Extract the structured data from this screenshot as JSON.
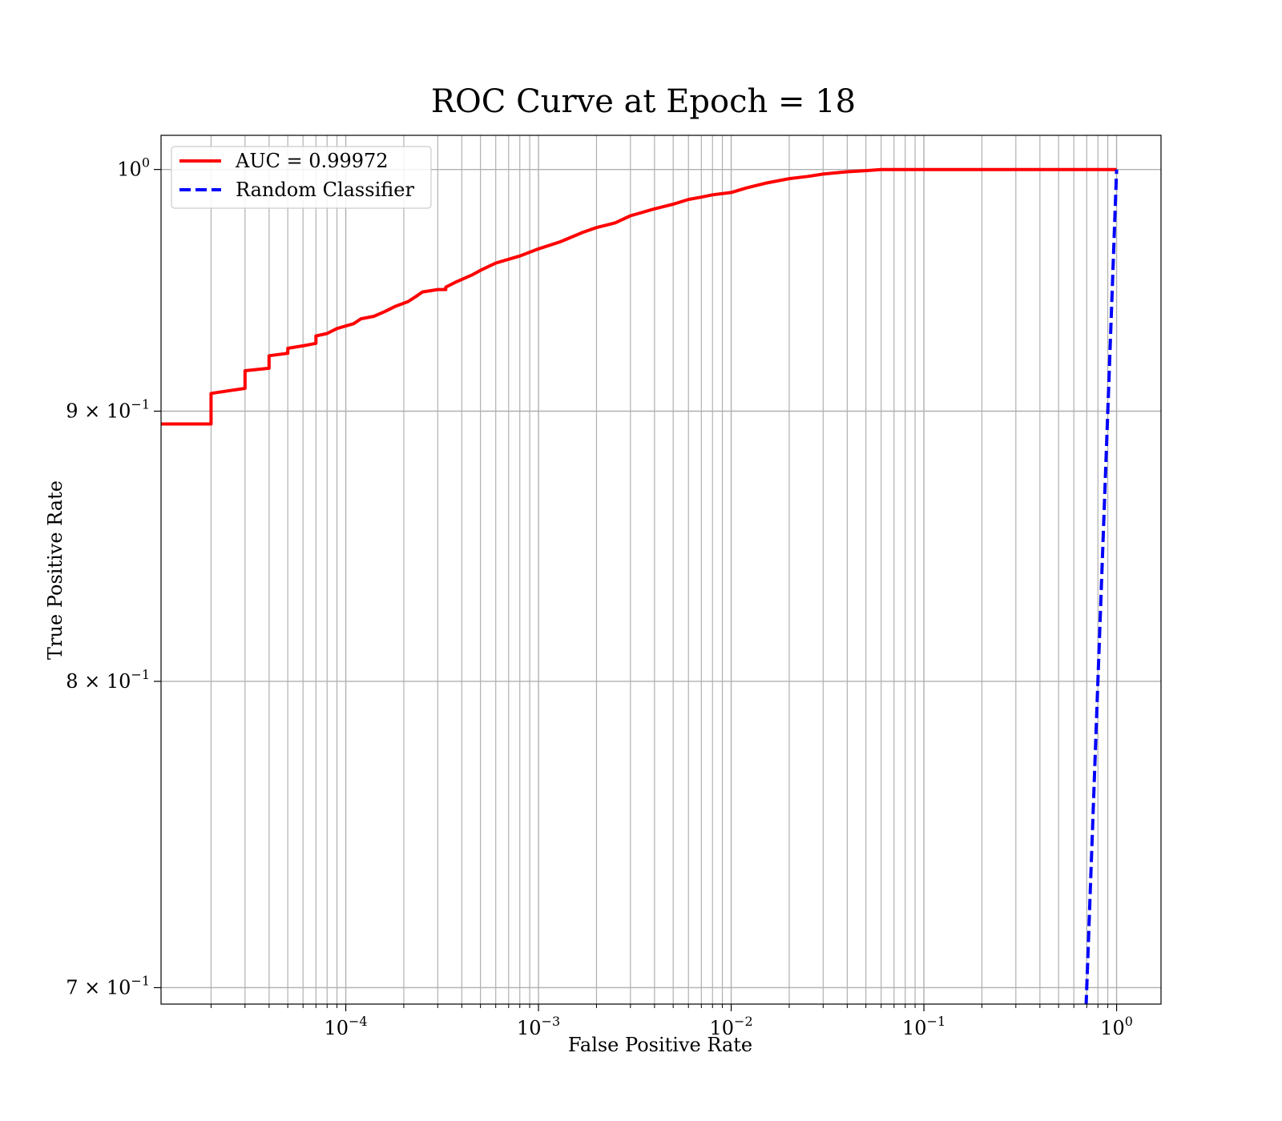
{
  "chart_data": {
    "type": "line",
    "title": "ROC Curve at Epoch = 18",
    "xlabel": "False Positive Rate",
    "ylabel": "True Positive Rate",
    "xscale": "log",
    "yscale": "log",
    "xlim": [
      1.1e-05,
      1.7
    ],
    "ylim": [
      0.695,
      1.015
    ],
    "grid": true,
    "legend_position": "top-left",
    "x_ticks": [
      {
        "value": 0.0001,
        "base": "10",
        "exp": "−4"
      },
      {
        "value": 0.001,
        "base": "10",
        "exp": "−3"
      },
      {
        "value": 0.01,
        "base": "10",
        "exp": "−2"
      },
      {
        "value": 0.1,
        "base": "10",
        "exp": "−1"
      },
      {
        "value": 1,
        "base": "10",
        "exp": "0"
      }
    ],
    "y_ticks": [
      {
        "value": 1.0,
        "base": "10",
        "exp": "0"
      },
      {
        "value": 0.9,
        "base": "9 × 10",
        "exp": "−1"
      },
      {
        "value": 0.8,
        "base": "8 × 10",
        "exp": "−1"
      },
      {
        "value": 0.7,
        "base": "7 × 10",
        "exp": "−1"
      }
    ],
    "series": [
      {
        "name": "AUC = 0.99972",
        "color": "#ff0000",
        "style": "solid",
        "x": [
          1.1e-05,
          2e-05,
          2e-05,
          3e-05,
          3e-05,
          4e-05,
          4e-05,
          5e-05,
          5e-05,
          6e-05,
          6e-05,
          7e-05,
          7e-05,
          8e-05,
          8e-05,
          9e-05,
          9e-05,
          0.00011,
          0.00011,
          0.00012,
          0.00012,
          0.00014,
          0.00014,
          0.00016,
          0.00016,
          0.00018,
          0.00018,
          0.00021,
          0.00021,
          0.00023,
          0.00023,
          0.00025,
          0.0003,
          0.00033,
          0.00033,
          0.00037,
          0.00045,
          0.0005,
          0.0006,
          0.0008,
          0.001,
          0.0013,
          0.0017,
          0.002,
          0.0025,
          0.003,
          0.004,
          0.005,
          0.006,
          0.007,
          0.008,
          0.01,
          0.012,
          0.015,
          0.02,
          0.025,
          0.03,
          0.04,
          0.05,
          0.06,
          0.08,
          0.1,
          0.15,
          0.2,
          0.3,
          0.5,
          0.7,
          1.0
        ],
        "y": [
          0.895,
          0.895,
          0.907,
          0.909,
          0.916,
          0.917,
          0.922,
          0.923,
          0.925,
          0.926,
          0.926,
          0.927,
          0.93,
          0.931,
          0.931,
          0.933,
          0.933,
          0.935,
          0.935,
          0.937,
          0.937,
          0.938,
          0.938,
          0.94,
          0.94,
          0.942,
          0.942,
          0.944,
          0.944,
          0.946,
          0.946,
          0.948,
          0.949,
          0.949,
          0.95,
          0.952,
          0.955,
          0.957,
          0.96,
          0.963,
          0.966,
          0.969,
          0.973,
          0.975,
          0.977,
          0.98,
          0.983,
          0.985,
          0.987,
          0.988,
          0.989,
          0.99,
          0.992,
          0.994,
          0.996,
          0.997,
          0.998,
          0.999,
          0.9995,
          1.0,
          1.0,
          1.0,
          1.0,
          1.0,
          1.0,
          1.0,
          1.0,
          1.0
        ]
      },
      {
        "name": "Random Classifier",
        "color": "#0000ff",
        "style": "dashed",
        "x": [
          0.68,
          0.75,
          0.82,
          0.9,
          1.0
        ],
        "y": [
          0.68,
          0.75,
          0.82,
          0.9,
          1.0
        ]
      }
    ]
  }
}
